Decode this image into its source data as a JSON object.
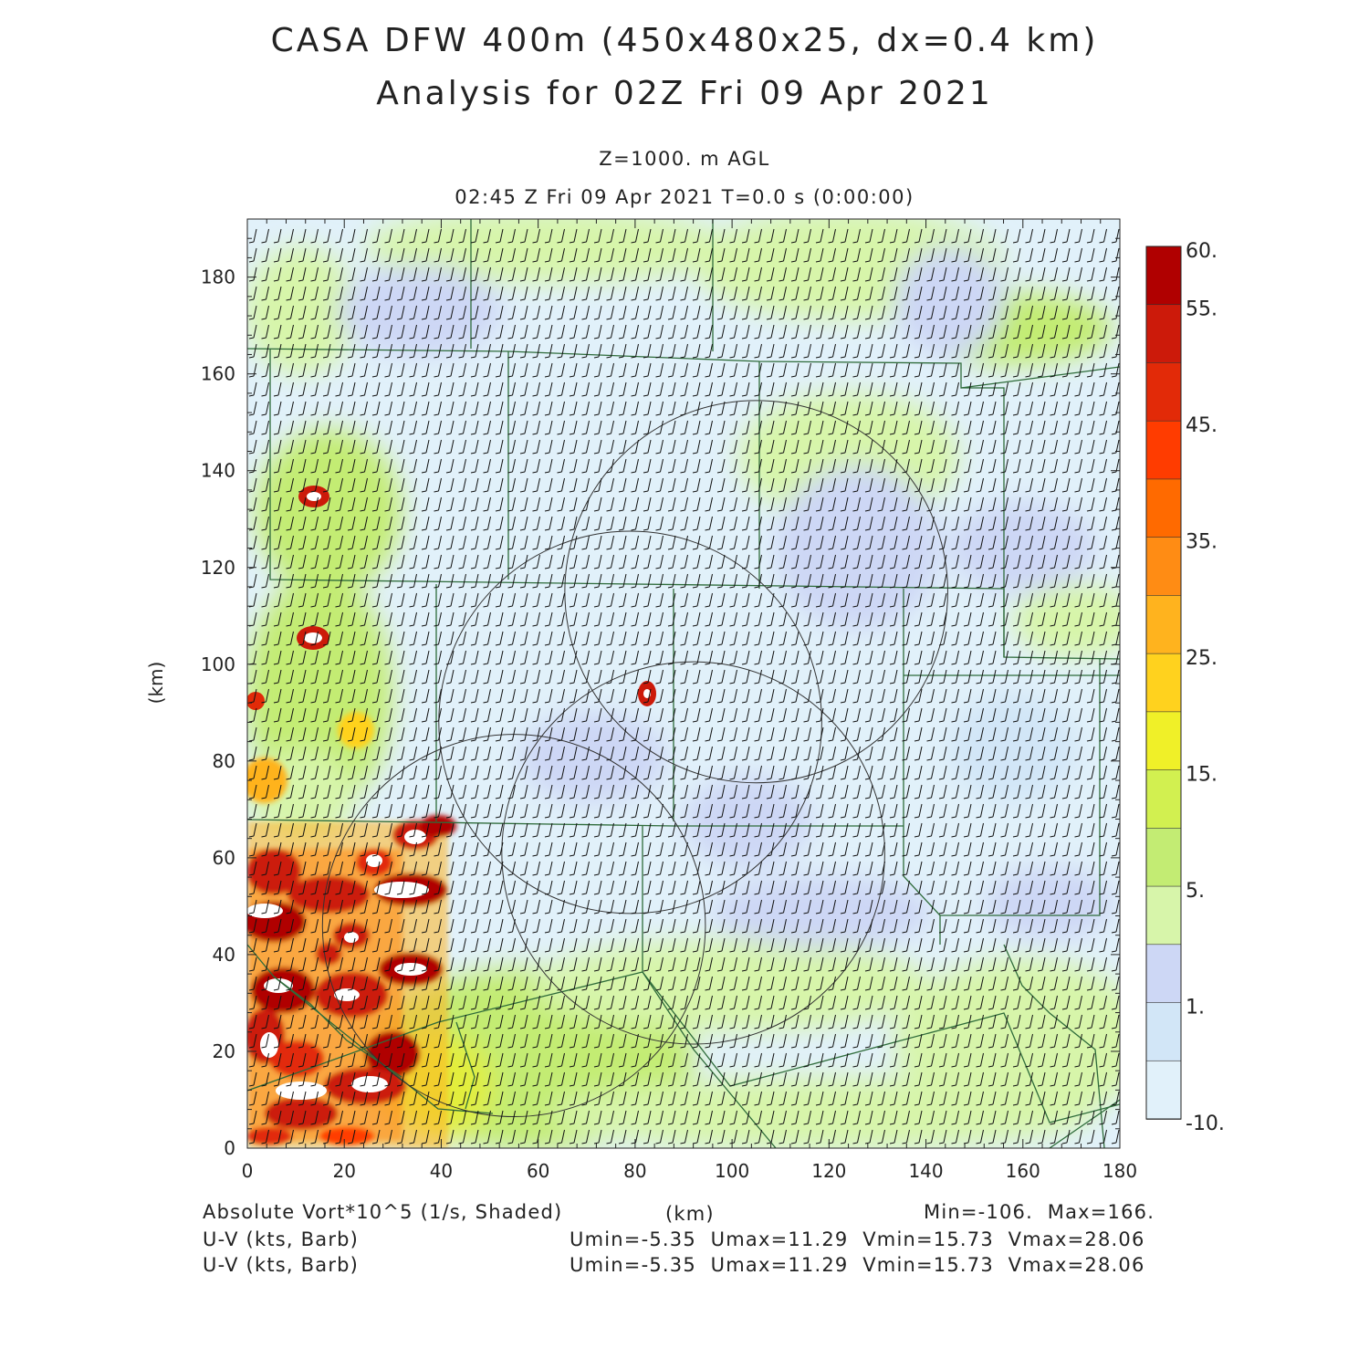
{
  "title": {
    "line1": "CASA DFW 400m (450x480x25, dx=0.4 km)",
    "line2": "Analysis for 02Z Fri 09 Apr 2021"
  },
  "subtitle": {
    "level": "Z=1000. m AGL",
    "time": "02:45 Z Fri 09 Apr 2021    T=0.0 s (0:00:00)"
  },
  "axes": {
    "x_label": "(km)",
    "y_label": "(km)",
    "x_ticks": [
      "0",
      "20",
      "40",
      "60",
      "80",
      "100",
      "120",
      "140",
      "160",
      "180"
    ],
    "y_ticks": [
      "0",
      "20",
      "40",
      "60",
      "80",
      "100",
      "120",
      "140",
      "160",
      "180"
    ],
    "x_range_km": [
      0,
      180
    ],
    "y_range_km": [
      0,
      192
    ]
  },
  "colorbar": {
    "labels": [
      "60.",
      "55.",
      "45.",
      "35.",
      "25.",
      "15.",
      "5.",
      "1.",
      "-10."
    ],
    "colors": [
      "#b00000",
      "#cc1a0a",
      "#e22a08",
      "#ff3c00",
      "#ff6a00",
      "#ff8c14",
      "#ffb31e",
      "#ffd21e",
      "#f0f028",
      "#d2f050",
      "#c3ec73",
      "#d7f5aa",
      "#cdd7f5",
      "#d2e6f7",
      "#e1f1fa"
    ]
  },
  "footer": {
    "field_label": "Absolute Vort*10^5 (1/s, Shaded)",
    "x_unit": "(km)",
    "minmax": "Min=-106.  Max=166.",
    "barb1_label": "U-V (kts, Barb)",
    "barb1_stats": "Umin=-5.35  Umax=11.29  Vmin=15.73  Vmax=28.06",
    "barb2_label": "U-V (kts, Barb)",
    "barb2_stats": "Umin=-5.35  Umax=11.29  Vmin=15.73  Vmax=28.06"
  },
  "map_data": {
    "radar_ranges_km": [
      {
        "cx": 105,
        "cy": 115,
        "r": 39.5
      },
      {
        "cx": 79,
        "cy": 88,
        "r": 39.5
      },
      {
        "cx": 92,
        "cy": 61,
        "r": 39.5
      },
      {
        "cx": 55,
        "cy": 46,
        "r": 39.5
      }
    ],
    "hotspots_km": [
      {
        "x": 14,
        "y": 134
      },
      {
        "x": 14,
        "y": 105
      },
      {
        "x": 82,
        "y": 93
      },
      {
        "x": 2,
        "y": 92
      }
    ]
  }
}
